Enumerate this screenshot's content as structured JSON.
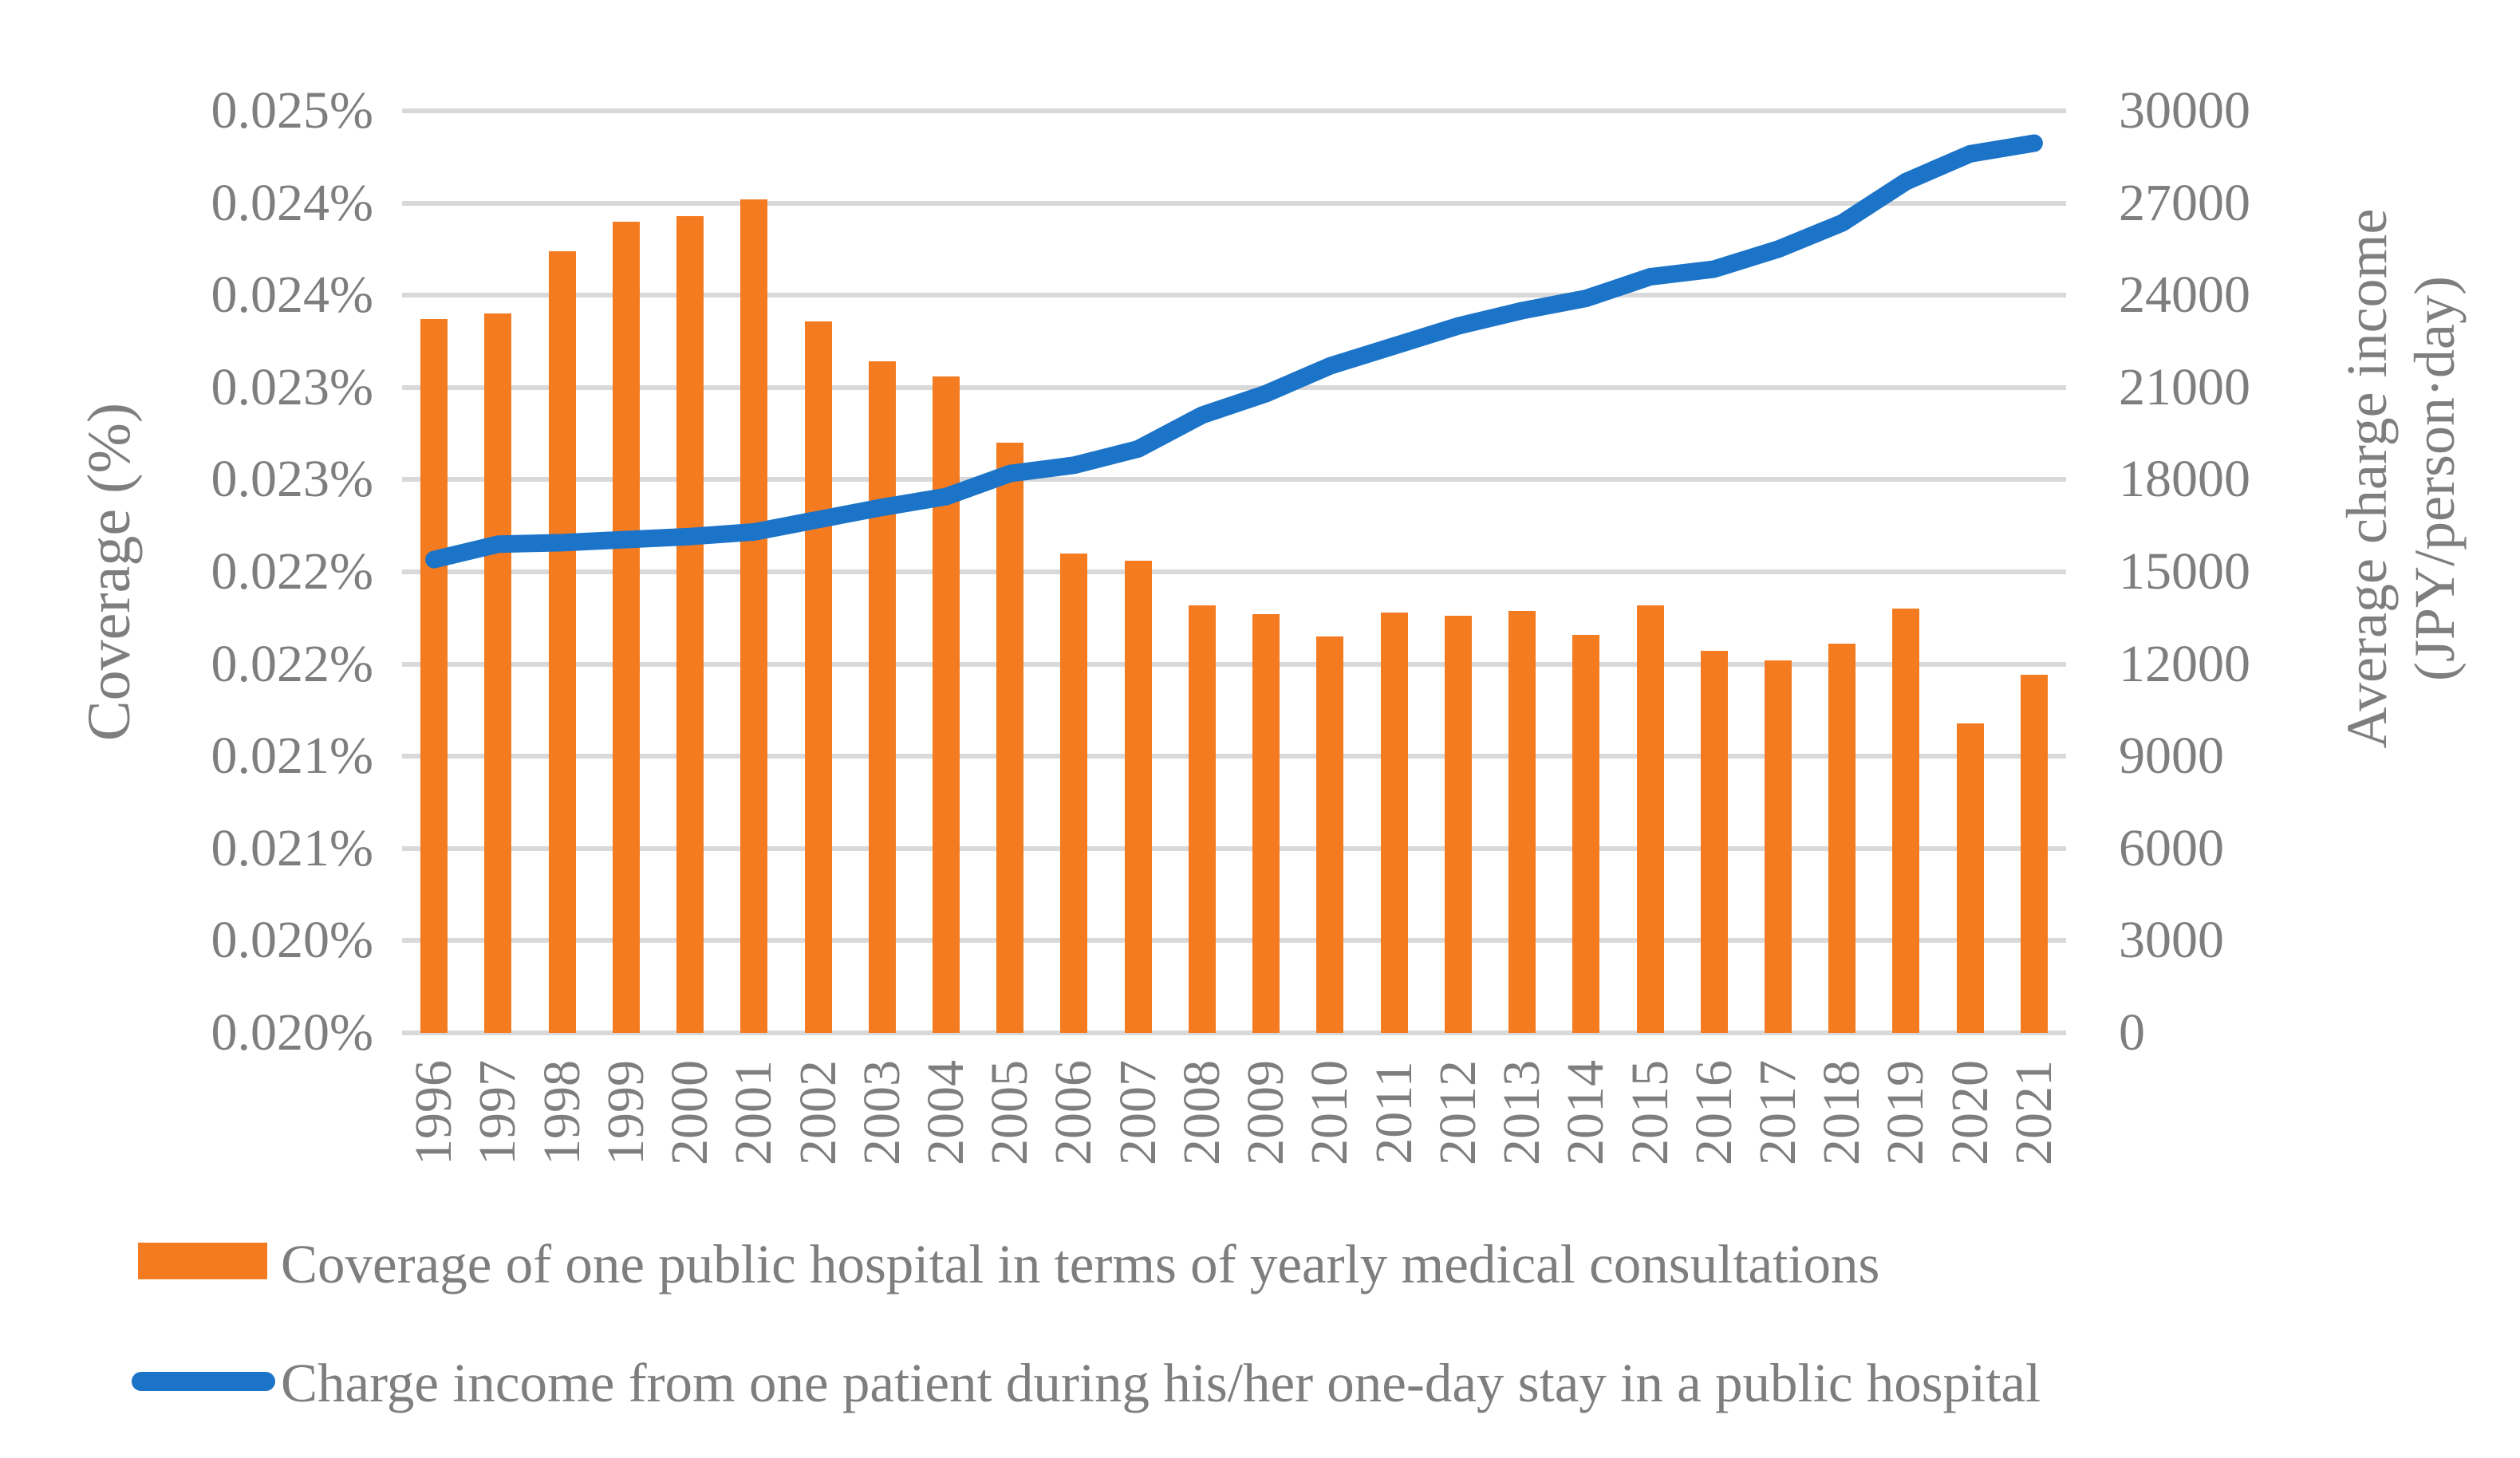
{
  "chart_data": {
    "type": "combo",
    "title": "",
    "categories": [
      "1996",
      "1997",
      "1998",
      "1999",
      "2000",
      "2001",
      "2002",
      "2003",
      "2004",
      "2005",
      "2006",
      "2007",
      "2008",
      "2009",
      "2010",
      "2011",
      "2012",
      "2013",
      "2014",
      "2015",
      "2016",
      "2017",
      "2018",
      "2019",
      "2020",
      "2021"
    ],
    "series": [
      {
        "name": "Coverage of one public hospital in terms of yearly medical consultations",
        "type": "bar",
        "axis": "left",
        "color": "#F47B20",
        "values_pct": [
          0.02387,
          0.0239,
          0.02424,
          0.0244,
          0.02443,
          0.02452,
          0.02386,
          0.02364,
          0.02356,
          0.0232,
          0.0226,
          0.02256,
          0.02232,
          0.02227,
          0.02215,
          0.02228,
          0.02226,
          0.02229,
          0.02216,
          0.02232,
          0.02207,
          0.02202,
          0.02211,
          0.0223,
          0.02168,
          0.02194
        ]
      },
      {
        "name": "Charge income from one patient during his/her one-day stay in a public hospital",
        "type": "line",
        "axis": "right",
        "color": "#1C74C8",
        "values_jpy": [
          15400,
          15900,
          15950,
          16050,
          16150,
          16300,
          16700,
          17100,
          17450,
          18200,
          18470,
          19000,
          20100,
          20800,
          21700,
          22350,
          23000,
          23500,
          23900,
          24600,
          24850,
          25500,
          26350,
          27700,
          28600,
          28950
        ]
      }
    ],
    "left_axis": {
      "title": "Coverage (%)",
      "min_pct": 0.02,
      "max_pct": 0.025,
      "tick_labels": [
        "0.025%",
        "0.024%",
        "0.024%",
        "0.023%",
        "0.023%",
        "0.022%",
        "0.022%",
        "0.021%",
        "0.021%",
        "0.020%",
        "0.020%"
      ]
    },
    "right_axis": {
      "title_line1": "Average charge income",
      "title_line2": "(JPY/person·day)",
      "min": 0,
      "max": 30000,
      "tick_labels": [
        "30000",
        "27000",
        "24000",
        "21000",
        "18000",
        "15000",
        "12000",
        "9000",
        "6000",
        "3000",
        "0"
      ]
    },
    "grid": {
      "color": "#D9D9D9",
      "show": true
    },
    "legend_position": "bottom-left",
    "text_color": "#7E7E7E",
    "background": "#FFFFFF"
  }
}
